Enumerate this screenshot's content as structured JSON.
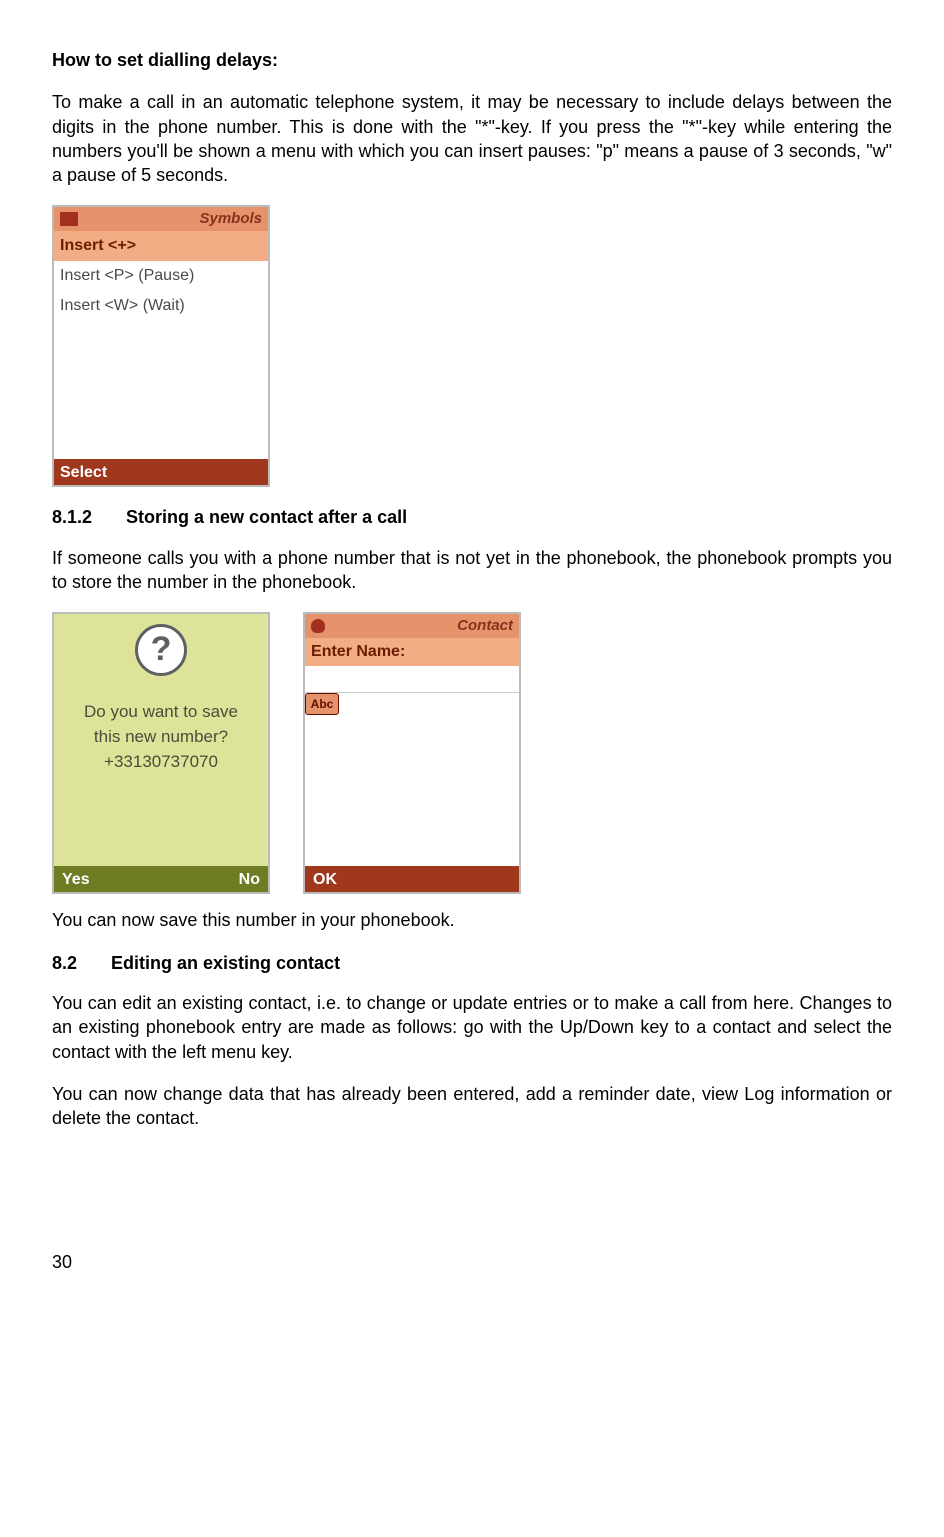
{
  "title_bold": "How to set dialling delays:",
  "para1": "To make a call in an automatic telephone system, it may be necessary to include delays between the digits in the phone number. This is done with the \"*\"-key. If you press the \"*\"-key while entering the numbers you'll be shown a menu with which you can insert pauses: \"p\" means a pause of 3 seconds, \"w\" a pause of 5 seconds.",
  "symbols_screen": {
    "header": "Symbols",
    "items": [
      "Insert <+>",
      "Insert <P> (Pause)",
      "Insert <W> (Wait)"
    ],
    "selected_index": 0,
    "softkey_left": "Select",
    "colors": {
      "header_bg": "#e6936c",
      "selected_bg": "#f2ad85",
      "footer_bg": "#9f381c"
    }
  },
  "h812_num": "8.1.2",
  "h812_title": "Storing a new contact after a call",
  "para2": "If someone calls you with a phone number that is not yet in the phonebook, the phonebook prompts you to store the number in the phonebook.",
  "confirm_screen": {
    "line1": "Do you want to save",
    "line2": "this new number?",
    "line3": "+33130737070",
    "softkey_left": "Yes",
    "softkey_right": "No",
    "colors": {
      "body_bg": "#dee39a",
      "footer_bg": "#6f7c24"
    }
  },
  "contact_screen": {
    "header": "Contact",
    "label": "Enter Name:",
    "mode_pill": "Abc",
    "softkey_left": "OK",
    "colors": {
      "header_bg": "#e6936c",
      "label_bg": "#f2ad85",
      "footer_bg": "#9f381c"
    }
  },
  "para3": "You can now save this number in your phonebook.",
  "h82_num": "8.2",
  "h82_title": "Editing an existing contact",
  "para4": "You can edit an existing contact, i.e. to change or update entries or to make a call from here. Changes to an existing phonebook entry are made as follows: go with the Up/Down key to a contact and select the contact with the left menu key.",
  "para5": "You can now change data that has already been entered, add a reminder date, view Log information or delete the contact.",
  "page_number": "30"
}
